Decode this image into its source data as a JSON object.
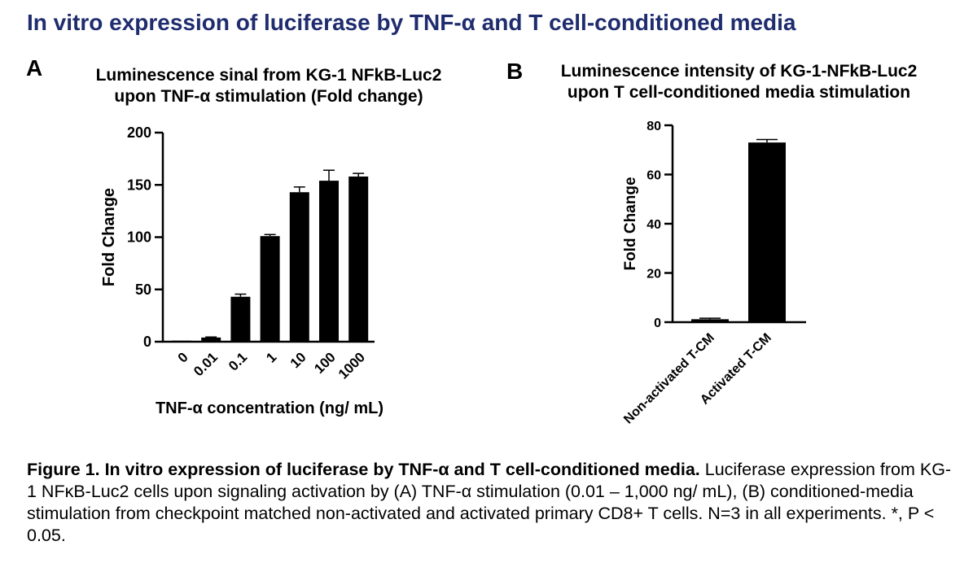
{
  "page_title": "In vitro expression of luciferase by TNF-α and T cell-conditioned media",
  "panels": {
    "a": {
      "letter": "A",
      "title_line1": "Luminescence sinal from KG-1  NFkB-Luc2",
      "title_line2": "upon TNF-α stimulation (Fold change)"
    },
    "b": {
      "letter": "B",
      "title_line1": "Luminescence intensity of KG-1-NFkB-Luc2",
      "title_line2": "upon T cell-conditioned media stimulation"
    }
  },
  "chart_data": [
    {
      "type": "bar",
      "title": "Luminescence sinal from KG-1  NFkB-Luc2 upon TNF-α stimulation (Fold change)",
      "categories": [
        "0",
        "0.01",
        "0.1",
        "1",
        "10",
        "100",
        "1000"
      ],
      "values": [
        1,
        4,
        43,
        101,
        143,
        154,
        158
      ],
      "errors": [
        0,
        0.5,
        2.5,
        1.5,
        5,
        10,
        3
      ],
      "xlabel": "TNF-α concentration (ng/ mL)",
      "ylabel": "Fold Change",
      "ylim": [
        0,
        200
      ],
      "yticks": [
        0,
        50,
        100,
        150,
        200
      ],
      "bar_color": "#000000",
      "grid": false
    },
    {
      "type": "bar",
      "title": "Luminescence intensity of KG-1-NFkB-Luc2 upon T cell-conditioned media stimulation",
      "categories": [
        "Non-activated T-CM",
        "Activated T-CM"
      ],
      "values": [
        1.2,
        73
      ],
      "errors": [
        0.4,
        1.2
      ],
      "xlabel": "",
      "ylabel": "Fold Change",
      "ylim": [
        0,
        80
      ],
      "yticks": [
        0,
        20,
        40,
        60,
        80
      ],
      "bar_color": "#000000",
      "grid": false
    }
  ],
  "caption": {
    "bold": "Figure 1. In vitro expression of luciferase by TNF-α and T cell-conditioned media.",
    "text": " Luciferase expression from KG-1 NFκB-Luc2 cells upon signaling activation by (A) TNF-α stimulation (0.01 – 1,000 ng/ mL), (B) conditioned-media stimulation from checkpoint matched non-activated and activated primary CD8+ T cells. N=3 in all experiments. *, P < 0.05."
  }
}
